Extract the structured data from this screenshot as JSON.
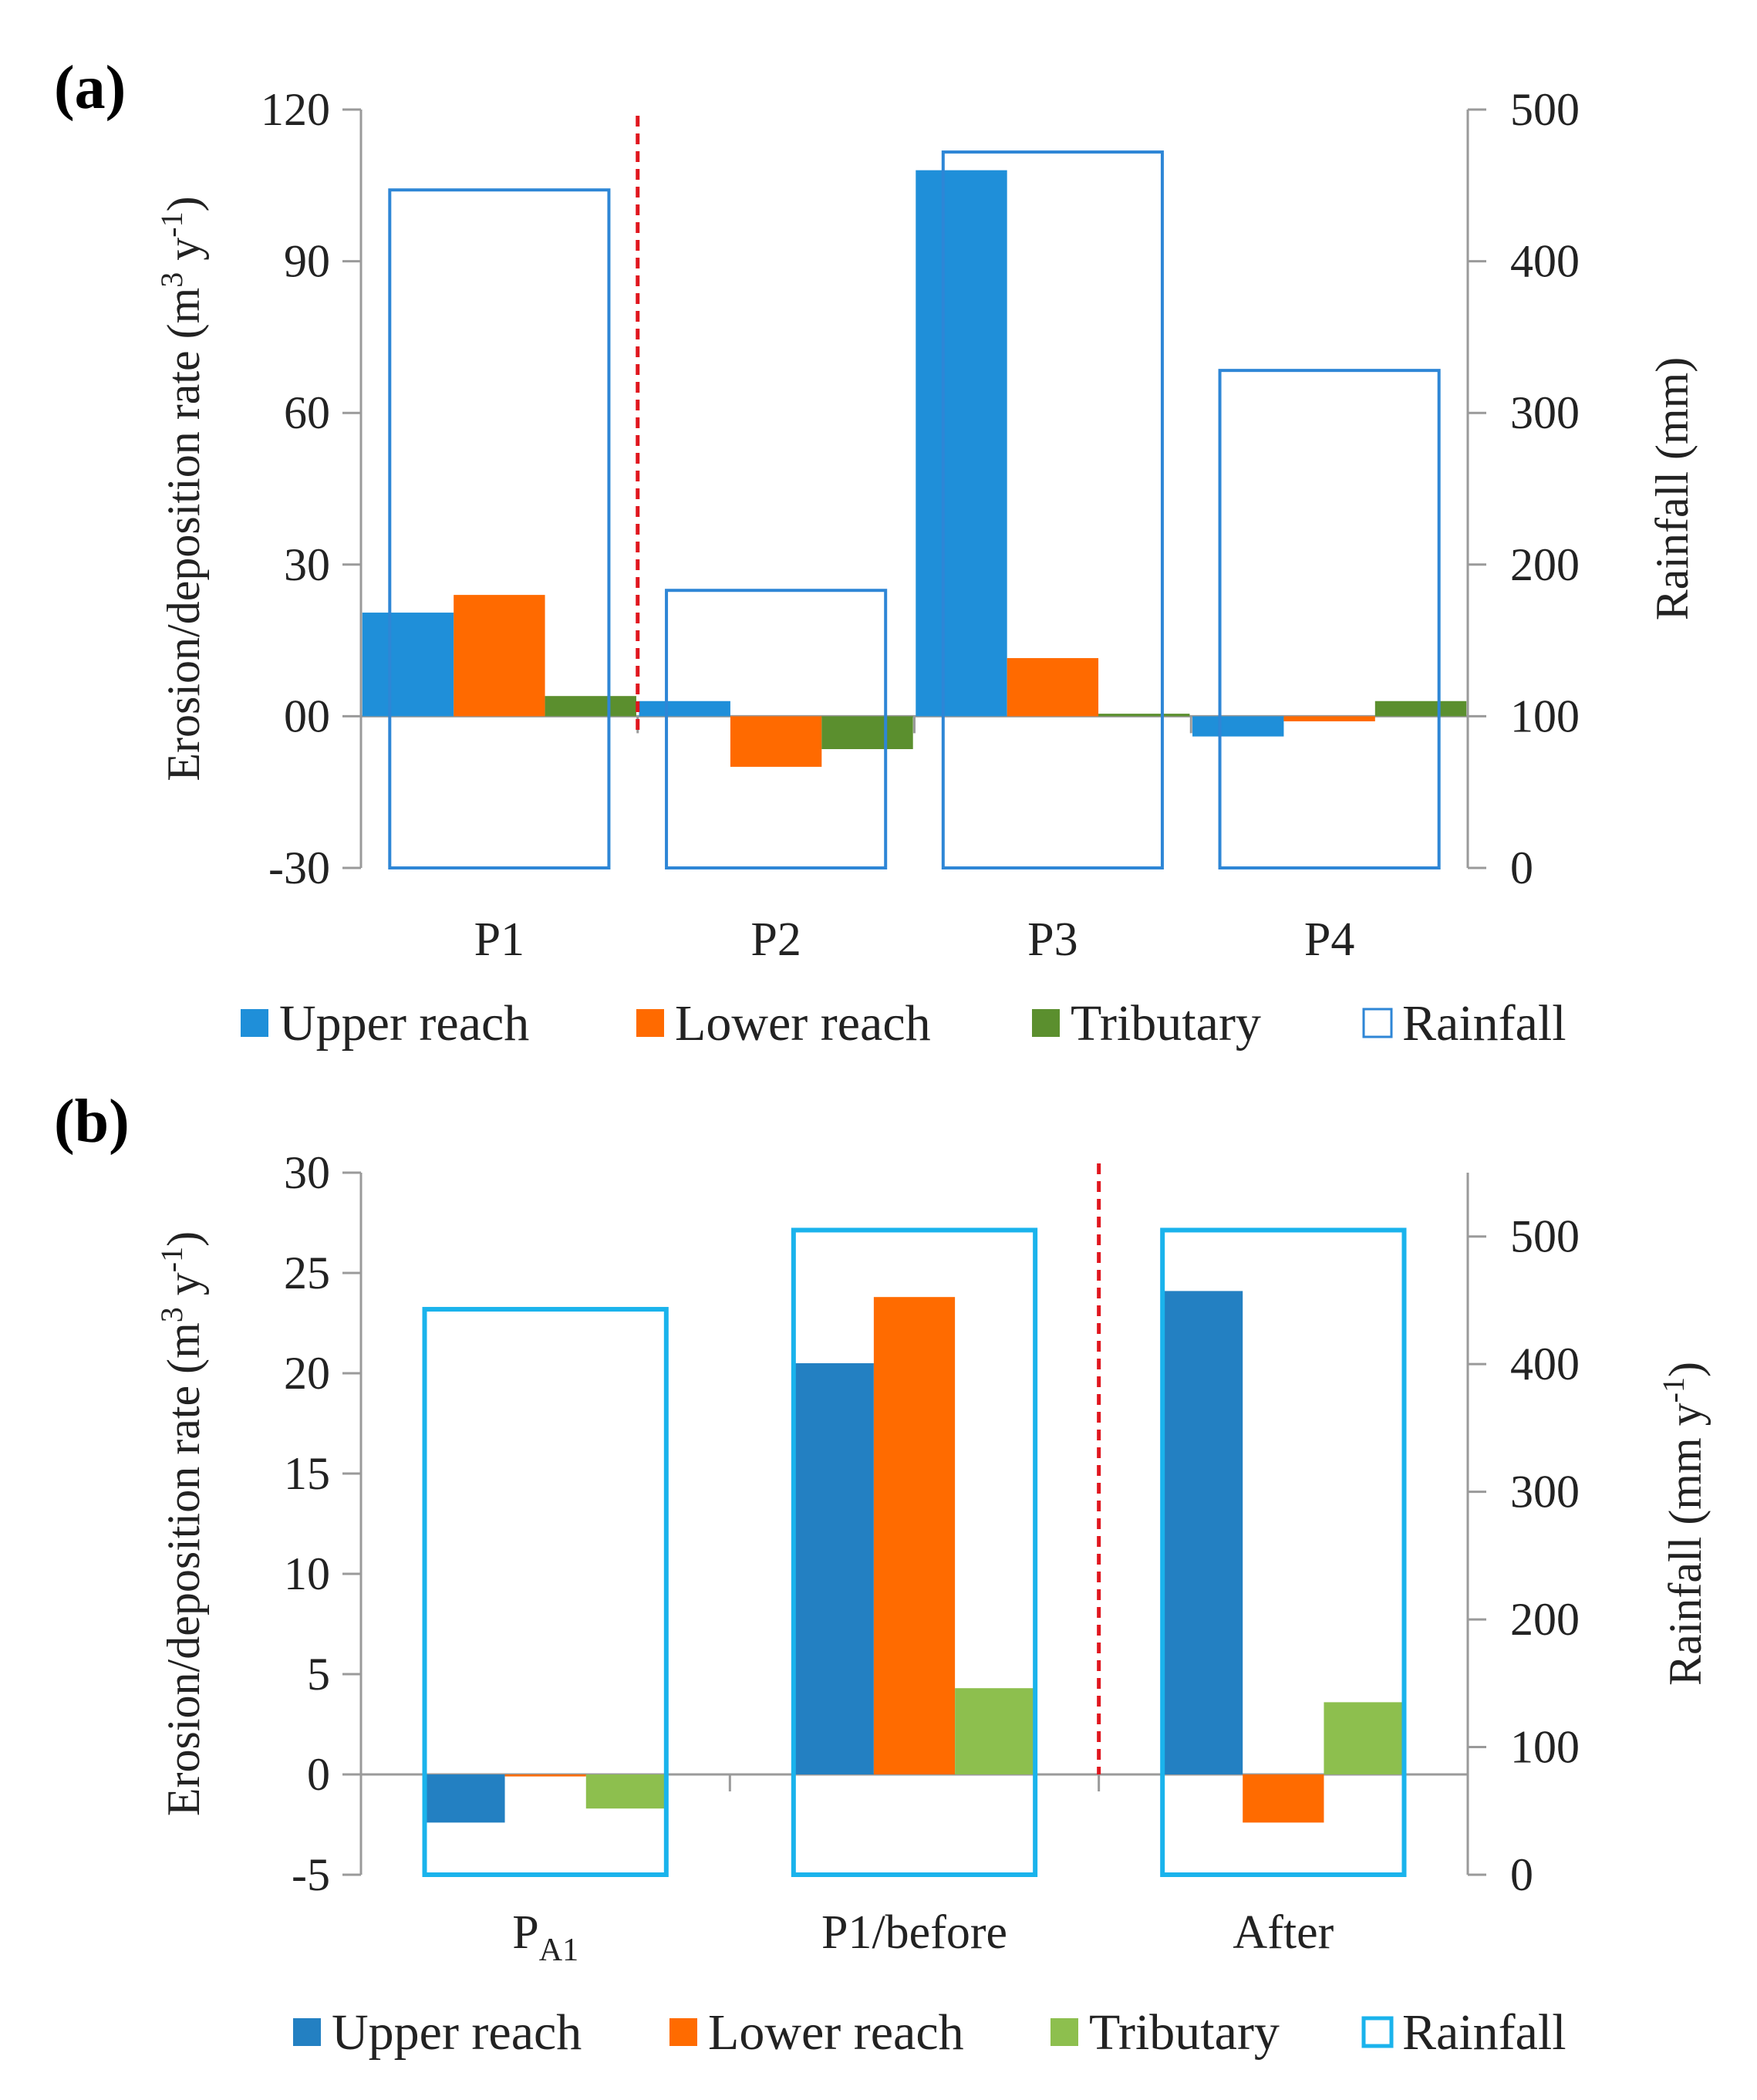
{
  "chart_data": [
    {
      "panel": "(a)",
      "type": "bar",
      "categories": [
        "P1",
        "P2",
        "P3",
        "P4"
      ],
      "category_subscripts": [
        "",
        "",
        "",
        ""
      ],
      "series": [
        {
          "name": "Upper reach",
          "axis": "left",
          "color": "#1F8FD9",
          "values": [
            20.5,
            3,
            108,
            -4
          ]
        },
        {
          "name": "Lower reach",
          "axis": "left",
          "color": "#FF6A00",
          "values": [
            24,
            -10,
            11.5,
            -1
          ]
        },
        {
          "name": "Tributary",
          "axis": "left",
          "color": "#5B8F2E",
          "values": [
            4,
            -6.5,
            0.5,
            3
          ]
        },
        {
          "name": "Rainfall",
          "axis": "right",
          "color": "#2E86D6",
          "style": "outline",
          "values": [
            447,
            183,
            472,
            328
          ]
        }
      ],
      "ylabel": "Erosion/deposition rate (m³ y⁻¹)",
      "ylabel_parts": {
        "main": "Erosion/deposition  rate (m",
        "sup1": "3",
        "mid": " y",
        "sup2": "-1",
        "end": ")"
      },
      "ylim": [
        -30,
        120
      ],
      "yticks": [
        -30,
        0,
        30,
        60,
        90,
        120
      ],
      "ytick_labels": [
        "-30",
        "00",
        "30",
        "60",
        "90",
        "120"
      ],
      "y2label": "Rainfall (mm)",
      "y2label_parts": {
        "main": "Rainfall (mm",
        "sup": "",
        "end": ")"
      },
      "y2lim": [
        0,
        500
      ],
      "y2ticks": [
        0,
        100,
        200,
        300,
        400,
        500
      ],
      "y2tick_labels": [
        "0",
        "100",
        "200",
        "300",
        "400",
        "500"
      ],
      "divider_after_index": 0,
      "divider_color": "#E0161E",
      "legend": [
        "Upper reach",
        "Lower reach",
        "Tributary",
        "Rainfall"
      ],
      "legend_position": "bottom"
    },
    {
      "panel": "(b)",
      "type": "bar",
      "categories": [
        "P",
        "P1/before",
        "After"
      ],
      "category_subscripts": [
        "A1",
        "",
        ""
      ],
      "series": [
        {
          "name": "Upper reach",
          "axis": "left",
          "color": "#2380C2",
          "values": [
            -2.4,
            20.5,
            24.1
          ]
        },
        {
          "name": "Lower reach",
          "axis": "left",
          "color": "#FF6B00",
          "values": [
            -0.1,
            23.8,
            -2.4
          ]
        },
        {
          "name": "Tributary",
          "axis": "left",
          "color": "#8DBF4E",
          "values": [
            -1.7,
            4.3,
            3.6
          ]
        },
        {
          "name": "Rainfall",
          "axis": "right",
          "color": "#1AB3EC",
          "style": "outline",
          "values": [
            443,
            505,
            505
          ]
        }
      ],
      "ylabel": "Erosion/deposition rate (m³ y⁻¹)",
      "ylabel_parts": {
        "main": "Erosion/deposition  rate (m",
        "sup1": "3",
        "mid": " y",
        "sup2": "-1",
        "end": ")"
      },
      "ylim": [
        -5,
        30
      ],
      "yticks": [
        -5,
        0,
        5,
        10,
        15,
        20,
        25,
        30
      ],
      "ytick_labels": [
        "-5",
        "0",
        "5",
        "10",
        "15",
        "20",
        "25",
        "30"
      ],
      "y2label": "Rainfall (mm y⁻¹)",
      "y2label_parts": {
        "main": "Rainfall (mm y",
        "sup": "-1",
        "end": ")"
      },
      "y2lim": [
        0,
        550
      ],
      "y2ticks": [
        0,
        100,
        200,
        300,
        400,
        500
      ],
      "y2tick_labels": [
        "0",
        "100",
        "200",
        "300",
        "400",
        "500"
      ],
      "divider_after_index": 1,
      "divider_color": "#E0161E",
      "legend": [
        "Upper reach",
        "Lower reach",
        "Tributary",
        "Rainfall"
      ],
      "legend_position": "bottom"
    }
  ]
}
